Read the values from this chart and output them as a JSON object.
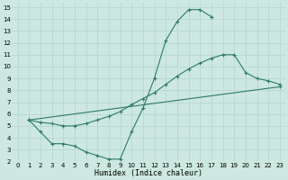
{
  "bg_color": "#cce8e0",
  "line_color": "#2d7a6b",
  "grid_color": "#b8d8d0",
  "xlabel": "Humidex (Indice chaleur)",
  "xlim": [
    -0.5,
    23.5
  ],
  "ylim": [
    2,
    15.4
  ],
  "xticks": [
    0,
    1,
    2,
    3,
    4,
    5,
    6,
    7,
    8,
    9,
    10,
    11,
    12,
    13,
    14,
    15,
    16,
    17,
    18,
    19,
    20,
    21,
    22,
    23
  ],
  "yticks": [
    2,
    3,
    4,
    5,
    6,
    7,
    8,
    9,
    10,
    11,
    12,
    13,
    14,
    15
  ],
  "series": [
    {
      "x": [
        1,
        2,
        3,
        4,
        5,
        6,
        7,
        8,
        9,
        10,
        11,
        12,
        13,
        14,
        15,
        16,
        17
      ],
      "y": [
        5.5,
        4.5,
        3.5,
        3.5,
        3.3,
        2.8,
        2.5,
        2.2,
        2.2,
        4.5,
        6.5,
        9.0,
        12.2,
        13.8,
        14.8,
        14.8,
        14.2
      ]
    },
    {
      "x": [
        1,
        2,
        3,
        4,
        5,
        6,
        7,
        8,
        9,
        10,
        11,
        12,
        13,
        14,
        15,
        16,
        17,
        18,
        19,
        20,
        21,
        22,
        23
      ],
      "y": [
        5.5,
        5.3,
        5.2,
        5.0,
        5.0,
        5.2,
        5.5,
        5.8,
        6.2,
        6.8,
        7.3,
        7.8,
        8.5,
        9.2,
        9.8,
        10.3,
        10.7,
        11.0,
        11.0,
        9.5,
        9.0,
        8.8,
        8.5
      ]
    },
    {
      "x": [
        1,
        23
      ],
      "y": [
        5.5,
        8.3
      ]
    }
  ]
}
